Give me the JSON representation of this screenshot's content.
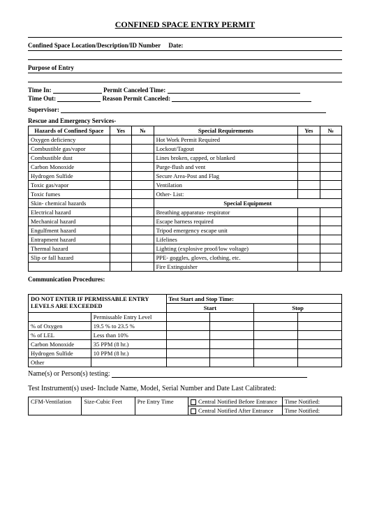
{
  "title": "CONFINED SPACE ENTRY PERMIT",
  "fields": {
    "location_label": "Confined Space Location/Description/ID Number",
    "date_label": "Date:",
    "purpose_label": "Purpose of Entry",
    "time_in_label": "Time In:",
    "permit_canceled_time_label": "Permit Canceled Time:",
    "time_out_label": "Time Out:",
    "reason_canceled_label": "Reason Permit Canceled:",
    "supervisor_label": "Supervisor:",
    "rescue_label": "Rescue and Emergency Services-"
  },
  "hazards_table": {
    "headers": {
      "hazards": "Hazards of Confined Space",
      "yes1": "Yes",
      "no1": "№",
      "special_req": "Special Requirements",
      "yes2": "Yes",
      "no2": "№"
    },
    "rows": [
      [
        "Oxygen deficiency",
        "Hot Work Permit Required"
      ],
      [
        "Combustible gas/vapor",
        "Lockout/Tagout"
      ],
      [
        "Combustible dust",
        "Lines broken, capped, or blanked"
      ],
      [
        "Carbon Monoxide",
        "Purge-flush and vent"
      ],
      [
        "Hydrogen Sulfide",
        "Secure Area-Post and Flag"
      ],
      [
        "Toxic gas/vapor",
        "Ventilation"
      ],
      [
        "Toxic fumes",
        "Other- List:"
      ],
      [
        "Skin- chemical hazards",
        "SPECIAL_EQUIP_HEADER"
      ],
      [
        "Electrical hazard",
        "Breathing apparatus- respirator"
      ],
      [
        "Mechanical hazard",
        "Escape harness required"
      ],
      [
        "Engulfment hazard",
        "Tripod emergency escape unit"
      ],
      [
        "Entrapment hazard",
        "Lifelines"
      ],
      [
        "Thermal hazard",
        "Lighting (explosive proof/low voltage)"
      ],
      [
        "Slip or fall hazard",
        "PPE- goggles, gloves, clothing, etc."
      ],
      [
        "",
        "Fire Extinguisher"
      ]
    ],
    "special_equip_header": "Special Equipment"
  },
  "comm_proc_label": "Communication Procedures:",
  "levels_table": {
    "header_left": "DO NOT ENTER IF PERMISSABLE ENTRY LEVELS ARE EXCEEDED",
    "header_right": "Test Start and Stop Time:",
    "start": "Start",
    "stop": "Stop",
    "perm_level_header": "Permissable Entry Level",
    "rows": [
      [
        "% of Oxygen",
        "19.5 % to 23.5 %"
      ],
      [
        "% of LEL",
        "Less than 10%"
      ],
      [
        "Carbon Monoxide",
        "35 PPM (8 hr.)"
      ],
      [
        "Hydrogen Sulfide",
        "10 PPM (8 hr.)"
      ],
      [
        "Other",
        ""
      ]
    ]
  },
  "names_testing_label": "Name(s) or Person(s) testing:",
  "instruments_label": "Test Instrument(s) used- Include Name, Model, Serial Number and Date Last Calibrated:",
  "cfm_table": {
    "c1": "CFM-Ventilation",
    "c2": "Size-Cubic Feet",
    "c3": "Pre Entry Time",
    "c4a": "Central Notified Before Entrance",
    "c4b": "Central Notified After Entrance",
    "c5": "Time Notified:"
  }
}
